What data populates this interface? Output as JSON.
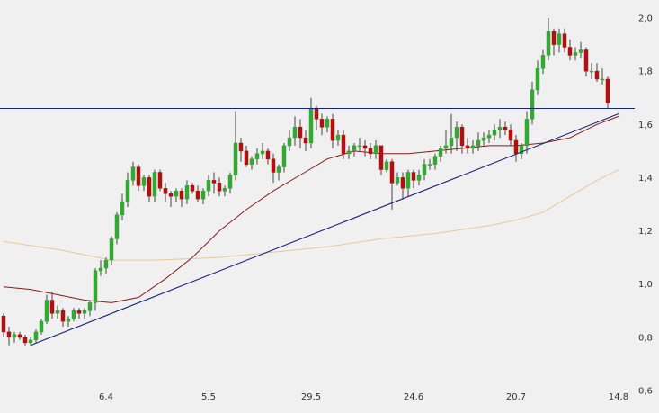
{
  "chart_data": {
    "type": "candlestick",
    "title": "",
    "xlabel": "",
    "ylabel": "",
    "ylim": [
      0.6,
      2.0
    ],
    "grid": false,
    "legend": "none",
    "y_ticks": [
      "0,6",
      "0,8",
      "1,0",
      "1,2",
      "1,4",
      "1,6",
      "1,8",
      "2,0"
    ],
    "x_ticks": [
      {
        "label": "6.4",
        "index": 19
      },
      {
        "label": "5.5",
        "index": 38
      },
      {
        "label": "29.5",
        "index": 57
      },
      {
        "label": "24.6",
        "index": 76
      },
      {
        "label": "20.7",
        "index": 95
      },
      {
        "label": "14.8",
        "index": 114
      }
    ],
    "colors": {
      "up": "#33a833",
      "down": "#b01010",
      "wick": "#444444",
      "ma_short": "#8b1a1a",
      "ma_long": "#e8c79a",
      "trend_lines": "#1a237e",
      "background": "#f0f0f0"
    },
    "candles": {
      "open": [
        0.88,
        0.82,
        0.8,
        0.81,
        0.8,
        0.78,
        0.79,
        0.82,
        0.86,
        0.94,
        0.89,
        0.9,
        0.86,
        0.87,
        0.9,
        0.89,
        0.9,
        0.93,
        1.05,
        1.06,
        1.09,
        1.17,
        1.26,
        1.31,
        1.39,
        1.44,
        1.37,
        1.4,
        1.33,
        1.42,
        1.36,
        1.34,
        1.33,
        1.35,
        1.32,
        1.37,
        1.35,
        1.32,
        1.35,
        1.39,
        1.38,
        1.35,
        1.36,
        1.41,
        1.53,
        1.5,
        1.45,
        1.47,
        1.49,
        1.5,
        1.47,
        1.42,
        1.44,
        1.52,
        1.55,
        1.59,
        1.55,
        1.53,
        1.66,
        1.62,
        1.59,
        1.62,
        1.54,
        1.56,
        1.49,
        1.5,
        1.52,
        1.52,
        1.51,
        1.49,
        1.52,
        1.43,
        1.46,
        1.38,
        1.4,
        1.36,
        1.42,
        1.39,
        1.41,
        1.45,
        1.45,
        1.48,
        1.51,
        1.52,
        1.55,
        1.59,
        1.52,
        1.51,
        1.52,
        1.54,
        1.55,
        1.56,
        1.58,
        1.59,
        1.58,
        1.54,
        1.49,
        1.52,
        1.62,
        1.73,
        1.81,
        1.86,
        1.95,
        1.9,
        1.94,
        1.89,
        1.86,
        1.87,
        1.88,
        1.8,
        1.8,
        1.77,
        1.77
      ],
      "close": [
        0.82,
        0.8,
        0.81,
        0.8,
        0.78,
        0.79,
        0.82,
        0.86,
        0.94,
        0.89,
        0.9,
        0.86,
        0.87,
        0.9,
        0.89,
        0.9,
        0.93,
        1.05,
        1.06,
        1.09,
        1.17,
        1.26,
        1.31,
        1.39,
        1.44,
        1.37,
        1.4,
        1.33,
        1.42,
        1.36,
        1.34,
        1.33,
        1.35,
        1.32,
        1.37,
        1.35,
        1.32,
        1.35,
        1.39,
        1.38,
        1.35,
        1.36,
        1.41,
        1.53,
        1.5,
        1.45,
        1.47,
        1.49,
        1.5,
        1.47,
        1.42,
        1.44,
        1.52,
        1.55,
        1.59,
        1.55,
        1.53,
        1.66,
        1.62,
        1.59,
        1.62,
        1.54,
        1.56,
        1.49,
        1.5,
        1.52,
        1.52,
        1.51,
        1.49,
        1.52,
        1.43,
        1.46,
        1.38,
        1.4,
        1.36,
        1.42,
        1.39,
        1.41,
        1.45,
        1.45,
        1.48,
        1.51,
        1.52,
        1.55,
        1.59,
        1.52,
        1.51,
        1.52,
        1.54,
        1.55,
        1.56,
        1.58,
        1.59,
        1.58,
        1.54,
        1.49,
        1.52,
        1.62,
        1.73,
        1.81,
        1.86,
        1.95,
        1.9,
        1.94,
        1.89,
        1.86,
        1.87,
        1.88,
        1.8,
        1.8,
        1.77,
        1.77,
        1.68
      ],
      "high": [
        0.89,
        0.84,
        0.82,
        0.82,
        0.81,
        0.8,
        0.83,
        0.87,
        0.96,
        0.97,
        0.92,
        0.91,
        0.88,
        0.91,
        0.91,
        0.91,
        0.94,
        1.06,
        1.09,
        1.1,
        1.18,
        1.27,
        1.34,
        1.42,
        1.46,
        1.45,
        1.41,
        1.41,
        1.43,
        1.43,
        1.38,
        1.35,
        1.36,
        1.36,
        1.39,
        1.38,
        1.37,
        1.36,
        1.41,
        1.42,
        1.4,
        1.37,
        1.42,
        1.65,
        1.55,
        1.52,
        1.48,
        1.51,
        1.53,
        1.51,
        1.49,
        1.45,
        1.53,
        1.58,
        1.63,
        1.62,
        1.58,
        1.7,
        1.67,
        1.64,
        1.63,
        1.64,
        1.58,
        1.58,
        1.52,
        1.53,
        1.55,
        1.54,
        1.53,
        1.54,
        1.52,
        1.47,
        1.47,
        1.42,
        1.42,
        1.43,
        1.43,
        1.43,
        1.47,
        1.47,
        1.49,
        1.52,
        1.58,
        1.64,
        1.61,
        1.6,
        1.55,
        1.54,
        1.57,
        1.57,
        1.58,
        1.6,
        1.62,
        1.61,
        1.6,
        1.56,
        1.53,
        1.65,
        1.76,
        1.84,
        1.88,
        2.0,
        1.96,
        1.96,
        1.96,
        1.92,
        1.89,
        1.91,
        1.89,
        1.83,
        1.83,
        1.81,
        1.78
      ],
      "low": [
        0.8,
        0.77,
        0.78,
        0.79,
        0.77,
        0.77,
        0.78,
        0.81,
        0.85,
        0.87,
        0.87,
        0.84,
        0.84,
        0.86,
        0.87,
        0.87,
        0.88,
        0.9,
        1.03,
        1.04,
        1.07,
        1.15,
        1.24,
        1.29,
        1.37,
        1.35,
        1.35,
        1.31,
        1.31,
        1.35,
        1.31,
        1.29,
        1.31,
        1.29,
        1.3,
        1.34,
        1.31,
        1.3,
        1.33,
        1.34,
        1.33,
        1.33,
        1.34,
        1.39,
        1.46,
        1.44,
        1.43,
        1.45,
        1.47,
        1.45,
        1.38,
        1.39,
        1.42,
        1.5,
        1.52,
        1.51,
        1.5,
        1.51,
        1.58,
        1.56,
        1.57,
        1.51,
        1.52,
        1.47,
        1.47,
        1.48,
        1.5,
        1.48,
        1.47,
        1.47,
        1.41,
        1.42,
        1.28,
        1.37,
        1.32,
        1.33,
        1.36,
        1.37,
        1.39,
        1.43,
        1.43,
        1.46,
        1.49,
        1.49,
        1.5,
        1.49,
        1.49,
        1.49,
        1.5,
        1.52,
        1.53,
        1.54,
        1.55,
        1.56,
        1.52,
        1.46,
        1.47,
        1.49,
        1.6,
        1.71,
        1.79,
        1.84,
        1.86,
        1.87,
        1.87,
        1.84,
        1.84,
        1.85,
        1.78,
        1.77,
        1.76,
        1.75,
        1.66
      ]
    },
    "series": [
      {
        "type": "line",
        "x": [
          0,
          5,
          10,
          15,
          20,
          25,
          30,
          35,
          40,
          45,
          50,
          55,
          60,
          65,
          70,
          75,
          80,
          85,
          90,
          95,
          100,
          105,
          110,
          114
        ],
        "values": [
          0.99,
          0.98,
          0.96,
          0.94,
          0.93,
          0.95,
          1.02,
          1.1,
          1.2,
          1.28,
          1.35,
          1.41,
          1.47,
          1.5,
          1.49,
          1.49,
          1.5,
          1.51,
          1.52,
          1.52,
          1.53,
          1.55,
          1.6,
          1.63
        ]
      },
      {
        "type": "line",
        "x": [
          0,
          10,
          20,
          28,
          40,
          50,
          60,
          70,
          80,
          90,
          95,
          100,
          105,
          110,
          114
        ],
        "values": [
          1.16,
          1.13,
          1.09,
          1.09,
          1.1,
          1.12,
          1.14,
          1.17,
          1.19,
          1.22,
          1.24,
          1.27,
          1.33,
          1.39,
          1.43
        ]
      },
      {
        "type": "line",
        "x": [
          0,
          114
        ],
        "values": [
          1.66,
          1.66
        ]
      },
      {
        "type": "line",
        "x": [
          5,
          114
        ],
        "values": [
          0.77,
          1.64
        ]
      }
    ]
  }
}
